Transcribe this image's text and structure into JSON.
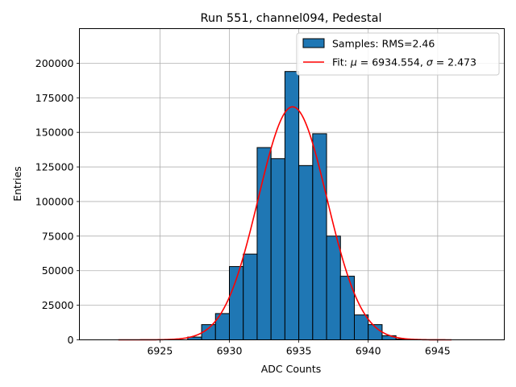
{
  "chart_data": {
    "type": "bar",
    "title": "Run 551, channel094, Pedestal",
    "xlabel": "ADC Counts",
    "ylabel": "Entries",
    "xlim": [
      6919.2,
      6949.8
    ],
    "ylim": [
      0,
      225000
    ],
    "xticks": [
      6925,
      6930,
      6935,
      6940,
      6945
    ],
    "yticks": [
      0,
      25000,
      50000,
      75000,
      100000,
      125000,
      150000,
      175000,
      200000
    ],
    "grid": true,
    "legend_position": "top-right",
    "bin_width": 1,
    "series": [
      {
        "name": "Samples: RMS=2.46",
        "kind": "histogram",
        "color": "#1f77b4",
        "bin_left_edges": [
          6927,
          6928,
          6929,
          6930,
          6931,
          6932,
          6933,
          6934,
          6935,
          6936,
          6937,
          6938,
          6939,
          6940,
          6941,
          6942
        ],
        "values": [
          2000,
          11000,
          19000,
          53000,
          62000,
          139000,
          131000,
          194000,
          126000,
          149000,
          75000,
          46000,
          18000,
          11000,
          3000,
          500
        ]
      },
      {
        "name": "Fit: μ = 6934.554, σ = 2.473",
        "name_parts": {
          "prefix": "Fit: ",
          "mu": "μ",
          "mid": " = 6934.554, ",
          "sigma": "σ",
          "suffix": " = 2.473"
        },
        "kind": "gaussian-fit",
        "color": "#ff0000",
        "mu": 6934.554,
        "sigma": 2.473,
        "amplitude": 168500,
        "x_range": [
          6922,
          6946
        ]
      }
    ]
  }
}
